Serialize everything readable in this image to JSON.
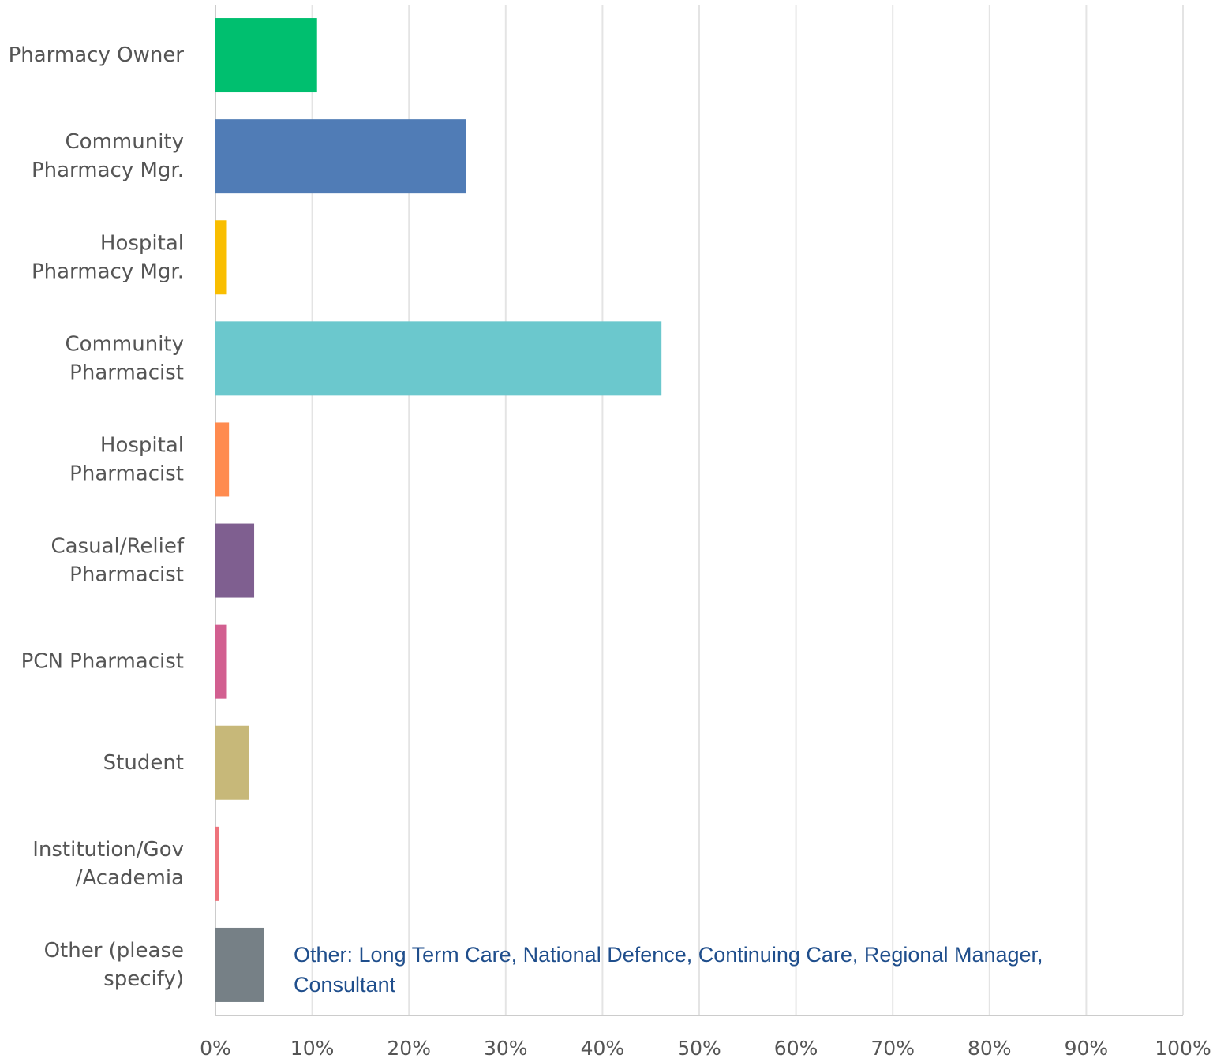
{
  "chart_data": {
    "type": "barh",
    "categories": [
      "Pharmacy Owner",
      "Community\nPharmacy Mgr.",
      "Hospital\nPharmacy Mgr.",
      "Community\nPharmacist",
      "Hospital\nPharmacist",
      "Casual/Relief\nPharmacist",
      "PCN Pharmacist",
      "Student",
      "Institution/Gov\n/Academia",
      "Other (please\nspecify)"
    ],
    "values": [
      10.5,
      25.9,
      1.1,
      46.1,
      1.4,
      4.0,
      1.1,
      3.5,
      0.4,
      5.0
    ],
    "colors": [
      "#00bf6f",
      "#507cb6",
      "#f9be00",
      "#6bc8cd",
      "#ff8b4f",
      "#7f5f90",
      "#d25f90",
      "#c7b879",
      "#ee737c",
      "#768086"
    ],
    "xlim": [
      0,
      100
    ],
    "xticks": [
      {
        "value": 0,
        "label": "0%"
      },
      {
        "value": 10,
        "label": "10%"
      },
      {
        "value": 20,
        "label": "20%"
      },
      {
        "value": 30,
        "label": "30%"
      },
      {
        "value": 40,
        "label": "40%"
      },
      {
        "value": 50,
        "label": "50%"
      },
      {
        "value": 60,
        "label": "60%"
      },
      {
        "value": 70,
        "label": "70%"
      },
      {
        "value": 80,
        "label": "80%"
      },
      {
        "value": 90,
        "label": "90%"
      },
      {
        "value": 100,
        "label": "100%"
      }
    ],
    "grid": true,
    "annotation": "Other: Long Term Care, National Defence, Continuing Care, Regional Manager,\nConsultant"
  }
}
